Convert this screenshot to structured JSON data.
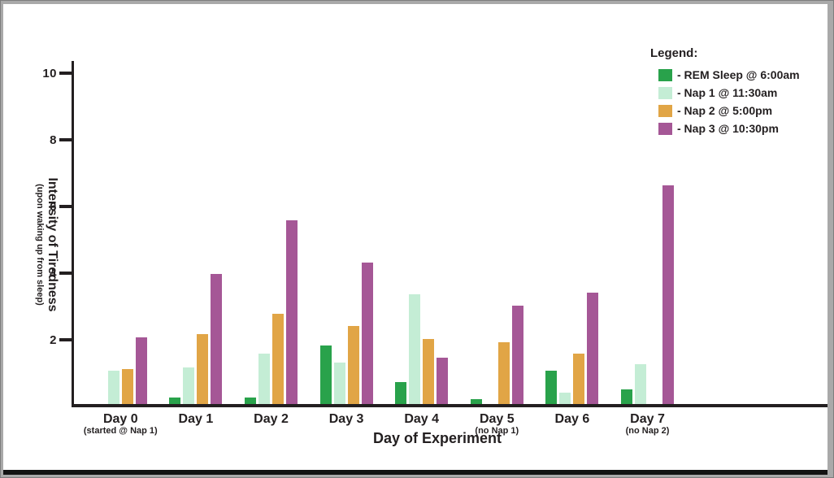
{
  "page": {
    "background": "#ffffff",
    "frame_color": "#a9a9a9",
    "bottom_bar_color": "#131313",
    "text_color": "#231f20",
    "axis_color": "#231f20"
  },
  "chart_data": {
    "type": "bar",
    "title": "",
    "xlabel": "Day of Experiment",
    "ylabel": "Intensity of Tiredness",
    "ylabel_sub": "(upon waking up from sleep)",
    "ylim": [
      0,
      10
    ],
    "yticks": [
      "2",
      "4",
      "6",
      "8",
      "10"
    ],
    "grid": false,
    "legend": {
      "title": "Legend:",
      "position": "top-right",
      "items": [
        {
          "label": "- REM Sleep @ 6:00am",
          "color": "#29a24b"
        },
        {
          "label": "- Nap 1 @ 11:30am",
          "color": "#c4edd5"
        },
        {
          "label": "- Nap 2 @ 5:00pm",
          "color": "#e1a546"
        },
        {
          "label": "- Nap 3 @ 10:30pm",
          "color": "#a55796"
        }
      ]
    },
    "categories": [
      "Day 0",
      "Day 1",
      "Day 2",
      "Day 3",
      "Day 4",
      "Day 5",
      "Day 6",
      "Day 7"
    ],
    "category_sublabels": [
      "(started @ Nap 1)",
      "",
      "",
      "",
      "",
      "(no Nap 1)",
      "",
      "(no Nap 2)"
    ],
    "series": [
      {
        "name": "REM Sleep @ 6:00am",
        "key": "rem-sleep",
        "color": "#29a24b",
        "values": [
          null,
          0.25,
          0.25,
          1.8,
          0.7,
          0.2,
          1.05,
          0.5
        ]
      },
      {
        "name": "Nap 1 @ 11:30am",
        "key": "nap-1",
        "color": "#c4edd5",
        "values": [
          1.05,
          1.15,
          1.55,
          1.3,
          3.35,
          null,
          0.4,
          1.25
        ]
      },
      {
        "name": "Nap 2 @ 5:00pm",
        "key": "nap-2",
        "color": "#e1a546",
        "values": [
          1.1,
          2.15,
          2.75,
          2.4,
          2.0,
          1.9,
          1.55,
          null
        ]
      },
      {
        "name": "Nap 3 @ 10:30pm",
        "key": "nap-3",
        "color": "#a55796",
        "values": [
          2.05,
          3.95,
          5.55,
          4.3,
          1.45,
          3.0,
          3.4,
          6.6
        ]
      }
    ]
  }
}
